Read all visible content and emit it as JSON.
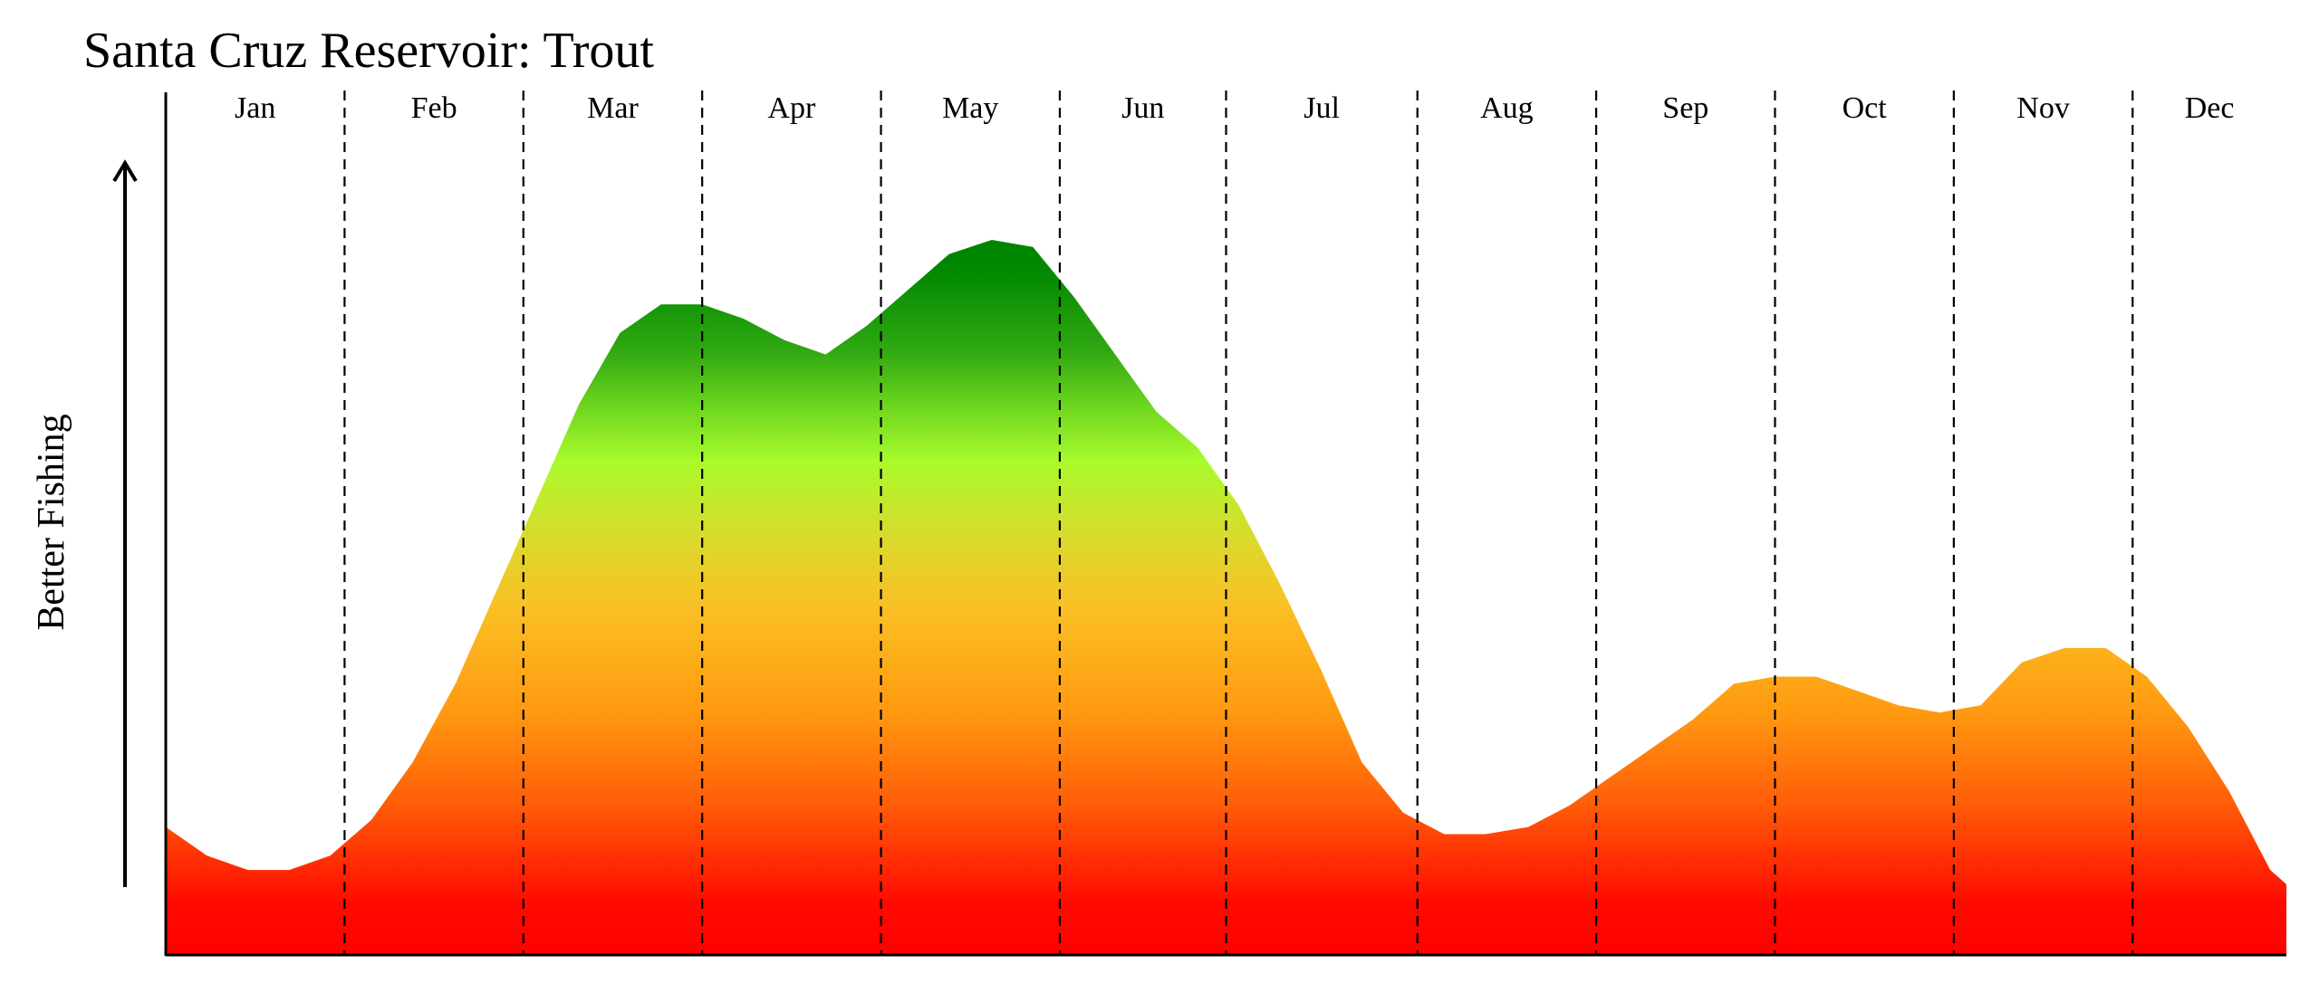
{
  "chart_data": {
    "type": "area",
    "title": "Santa Cruz Reservoir: Trout",
    "xlabel": "",
    "ylabel": "Better Fishing",
    "months": [
      "Jan",
      "Feb",
      "Mar",
      "Apr",
      "May",
      "Jun",
      "Jul",
      "Aug",
      "Sep",
      "Oct",
      "Nov",
      "Dec"
    ],
    "month_boundaries": [
      0,
      1.0,
      2.0,
      3.0,
      4.0,
      5.0,
      5.93,
      7.0,
      8.0,
      9.0,
      10.0,
      11.0,
      11.86
    ],
    "x_range": [
      0,
      11.86
    ],
    "y_range": [
      0,
      1
    ],
    "grid": "vertical dashed month dividers",
    "legend": "none",
    "colors": {
      "low": "#ff0000",
      "mid_low": "#ff9a10",
      "mid": "#fbbf25",
      "mid_high": "#a9fb2c",
      "high": "#008800",
      "axis": "#000000"
    },
    "series": [
      {
        "x": [
          0,
          0.23,
          0.46,
          0.69,
          0.92,
          1.15,
          1.38,
          1.62,
          1.85,
          2.08,
          2.31,
          2.54,
          2.77,
          3.0,
          3.23,
          3.46,
          3.69,
          3.92,
          4.15,
          4.38,
          4.62,
          4.85,
          5.08,
          5.31,
          5.54,
          5.77,
          6.0,
          6.23,
          6.46,
          6.69,
          6.92,
          7.15,
          7.38,
          7.62,
          7.85,
          8.08,
          8.31,
          8.54,
          8.77,
          9.0,
          9.23,
          9.46,
          9.69,
          9.92,
          10.15,
          10.38,
          10.62,
          10.85,
          11.08,
          11.31,
          11.54,
          11.77,
          11.86
        ],
        "values": [
          0.18,
          0.14,
          0.12,
          0.12,
          0.14,
          0.19,
          0.27,
          0.38,
          0.51,
          0.64,
          0.77,
          0.87,
          0.91,
          0.91,
          0.89,
          0.86,
          0.84,
          0.88,
          0.93,
          0.98,
          1.0,
          0.99,
          0.92,
          0.84,
          0.76,
          0.71,
          0.63,
          0.52,
          0.4,
          0.27,
          0.2,
          0.17,
          0.17,
          0.18,
          0.21,
          0.25,
          0.29,
          0.33,
          0.38,
          0.39,
          0.39,
          0.37,
          0.35,
          0.34,
          0.35,
          0.41,
          0.43,
          0.43,
          0.39,
          0.32,
          0.23,
          0.12,
          0.1
        ]
      }
    ]
  }
}
